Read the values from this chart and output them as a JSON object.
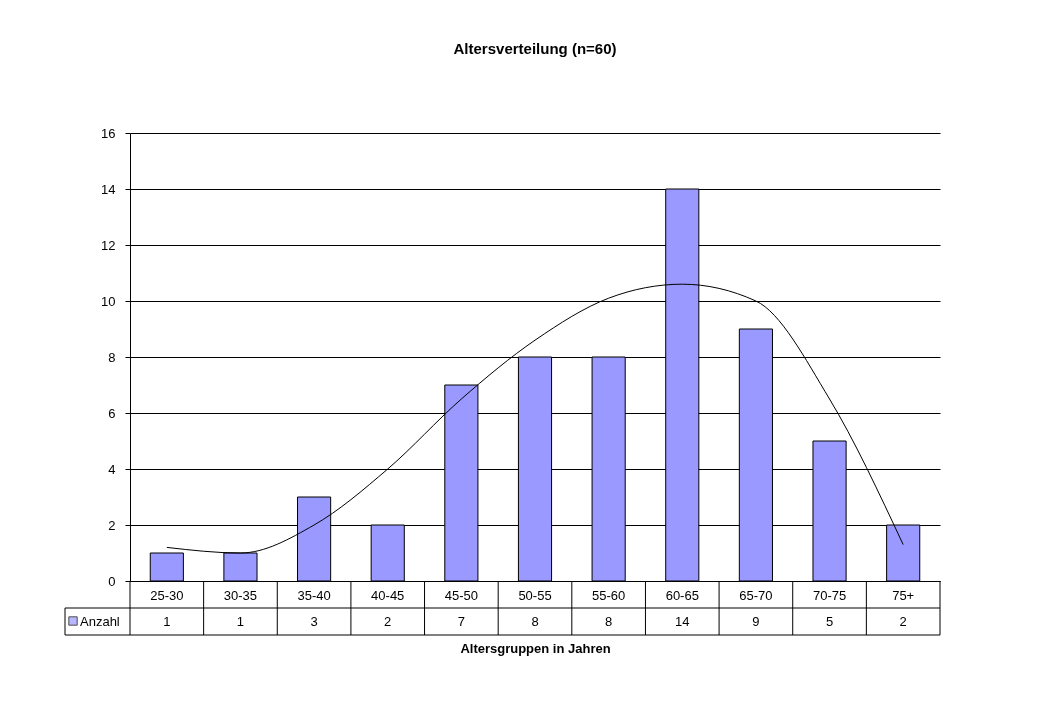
{
  "chart_data": {
    "type": "bar",
    "title": "Altersverteilung (n=60)",
    "xlabel": "Altersgruppen in Jahren",
    "categories": [
      "25-30",
      "30-35",
      "35-40",
      "40-45",
      "45-50",
      "50-55",
      "55-60",
      "60-65",
      "65-70",
      "70-75",
      "75+"
    ],
    "series": [
      {
        "name": "Anzahl",
        "color": "#9999ff",
        "values": [
          1,
          1,
          3,
          2,
          7,
          8,
          8,
          14,
          9,
          5,
          2
        ],
        "value_labels": [
          "1",
          "1",
          "3",
          "2",
          "7",
          "8",
          "8",
          "14",
          "9",
          "5",
          "2"
        ]
      },
      {
        "type": "line",
        "color": "#000000",
        "values": [
          1.2,
          1.0,
          2.0,
          4.0,
          6.5,
          8.6,
          10.1,
          10.6,
          10.0,
          6.5,
          1.3
        ]
      }
    ],
    "ylim": [
      0,
      16
    ],
    "yticks": [
      0,
      2,
      4,
      6,
      8,
      10,
      12,
      14,
      16
    ],
    "grid": "y",
    "legend": "bottom"
  }
}
